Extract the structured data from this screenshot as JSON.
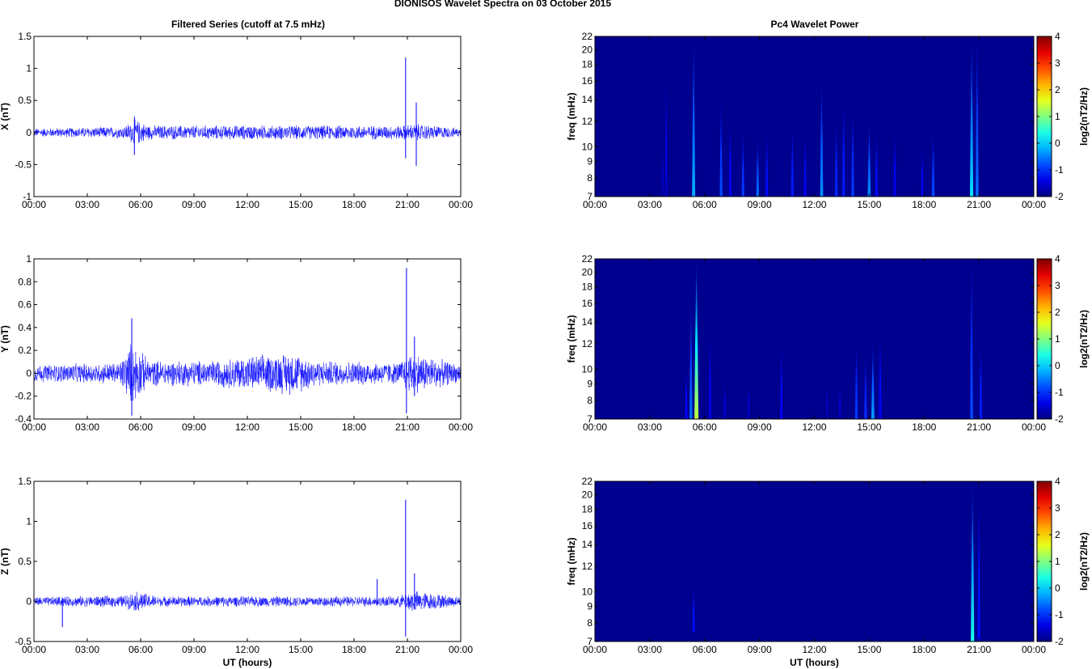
{
  "title": "DIONISOS Wavelet Spectra on 03 October   2015",
  "left_title": "Filtered Series (cutoff at 7.5 mHz)",
  "right_title": "Pc4 Wavelet Power",
  "colors": {
    "trace": "#0000ff",
    "background": "#00008f"
  },
  "chart_data": [
    {
      "id": "x-series",
      "type": "line",
      "series": [
        {
          "name": "",
          "component": "X"
        }
      ],
      "ylabel": "X (nT)",
      "xlabel": "",
      "ylim": [
        -1,
        1.5
      ],
      "yticks": [
        "-1",
        "-0.5",
        "0",
        "0.5",
        "1",
        "1.5"
      ],
      "yticks_values": [
        -1,
        -0.5,
        0,
        0.5,
        1,
        1.5
      ],
      "xticks": [
        "00:00",
        "03:00",
        "06:00",
        "09:00",
        "12:00",
        "15:00",
        "18:00",
        "21:00",
        "00:00"
      ],
      "noise_envelope": [
        {
          "t": 0,
          "amp": 0.07
        },
        {
          "t": 5,
          "amp": 0.1
        },
        {
          "t": 5.7,
          "amp": 0.22
        },
        {
          "t": 6.5,
          "amp": 0.12
        },
        {
          "t": 12,
          "amp": 0.12
        },
        {
          "t": 18,
          "amp": 0.12
        },
        {
          "t": 20.7,
          "amp": 0.12
        },
        {
          "t": 21.5,
          "amp": 0.15
        },
        {
          "t": 24,
          "amp": 0.07
        }
      ],
      "spikes": [
        {
          "t": 5.65,
          "max": 0.25,
          "min": -0.35
        },
        {
          "t": 20.9,
          "max": 1.17,
          "min": -0.4
        },
        {
          "t": 21.5,
          "max": 0.47,
          "min": -0.52
        }
      ]
    },
    {
      "id": "y-series",
      "type": "line",
      "series": [
        {
          "name": "",
          "component": "Y"
        }
      ],
      "ylabel": "Y (nT)",
      "xlabel": "",
      "ylim": [
        -0.4,
        1
      ],
      "yticks": [
        "-0.4",
        "-0.2",
        "0",
        "0.2",
        "0.4",
        "0.6",
        "0.8",
        "1"
      ],
      "yticks_values": [
        -0.4,
        -0.2,
        0,
        0.2,
        0.4,
        0.6,
        0.8,
        1
      ],
      "xticks": [
        "00:00",
        "03:00",
        "06:00",
        "09:00",
        "12:00",
        "15:00",
        "18:00",
        "21:00",
        "00:00"
      ],
      "noise_envelope": [
        {
          "t": 0,
          "amp": 0.08
        },
        {
          "t": 4.8,
          "amp": 0.1
        },
        {
          "t": 5.5,
          "amp": 0.3
        },
        {
          "t": 6.5,
          "amp": 0.12
        },
        {
          "t": 10,
          "amp": 0.12
        },
        {
          "t": 12,
          "amp": 0.16
        },
        {
          "t": 14.5,
          "amp": 0.2
        },
        {
          "t": 16,
          "amp": 0.12
        },
        {
          "t": 20.5,
          "amp": 0.1
        },
        {
          "t": 21.2,
          "amp": 0.2
        },
        {
          "t": 24,
          "amp": 0.08
        }
      ],
      "spikes": [
        {
          "t": 5.5,
          "max": 0.48,
          "min": -0.37
        },
        {
          "t": 20.95,
          "max": 0.92,
          "min": -0.35
        },
        {
          "t": 21.4,
          "max": 0.32,
          "min": -0.2
        }
      ]
    },
    {
      "id": "z-series",
      "type": "line",
      "series": [
        {
          "name": "",
          "component": "Z"
        }
      ],
      "ylabel": "Z (nT)",
      "xlabel": "UT (hours)",
      "ylim": [
        -0.5,
        1.5
      ],
      "yticks": [
        "-0.5",
        "0",
        "0.5",
        "1",
        "1.5"
      ],
      "yticks_values": [
        -0.5,
        0,
        0.5,
        1,
        1.5
      ],
      "xticks": [
        "00:00",
        "03:00",
        "06:00",
        "09:00",
        "12:00",
        "15:00",
        "18:00",
        "21:00",
        "00:00"
      ],
      "noise_envelope": [
        {
          "t": 0,
          "amp": 0.06
        },
        {
          "t": 5,
          "amp": 0.08
        },
        {
          "t": 5.8,
          "amp": 0.14
        },
        {
          "t": 7,
          "amp": 0.07
        },
        {
          "t": 20.5,
          "amp": 0.07
        },
        {
          "t": 21.2,
          "amp": 0.15
        },
        {
          "t": 24,
          "amp": 0.06
        }
      ],
      "spikes": [
        {
          "t": 1.6,
          "max": 0.05,
          "min": -0.32
        },
        {
          "t": 20.9,
          "max": 1.27,
          "min": -0.44
        },
        {
          "t": 21.4,
          "max": 0.35,
          "min": -0.1
        },
        {
          "t": 19.3,
          "max": 0.28,
          "min": -0.05
        }
      ]
    },
    {
      "id": "x-wavelet",
      "type": "heatmap",
      "ylabel": "freq (mHz)",
      "xlabel": "",
      "ylim": [
        7,
        22
      ],
      "y_scale": "log",
      "yticks": [
        "7",
        "8",
        "9",
        "10",
        "12",
        "14",
        "16",
        "18",
        "20",
        "22"
      ],
      "yticks_values": [
        7,
        8,
        9,
        10,
        12,
        14,
        16,
        18,
        20,
        22
      ],
      "xticks": [
        "00:00",
        "03:00",
        "06:00",
        "09:00",
        "12:00",
        "15:00",
        "18:00",
        "21:00",
        "00:00"
      ],
      "colorbar": {
        "label": "log2(nT2/Hz)",
        "range": [
          -2,
          4
        ],
        "ticks": [
          "-2",
          "-1",
          "0",
          "1",
          "2",
          "3",
          "4"
        ],
        "ticks_values": [
          -2,
          -1,
          0,
          1,
          2,
          3,
          4
        ]
      },
      "features": [
        {
          "t": 5.4,
          "fmin": 7,
          "fmax": 22,
          "power": -0.2
        },
        {
          "t": 3.9,
          "fmin": 7,
          "fmax": 17,
          "power": -1.6
        },
        {
          "t": 3.7,
          "fmin": 7,
          "fmax": 10,
          "power": -1.8
        },
        {
          "t": 6.9,
          "fmin": 7,
          "fmax": 14,
          "power": -0.8
        },
        {
          "t": 7.4,
          "fmin": 7,
          "fmax": 12,
          "power": -1.3
        },
        {
          "t": 8.1,
          "fmin": 7,
          "fmax": 11,
          "power": -0.9
        },
        {
          "t": 8.9,
          "fmin": 7,
          "fmax": 10.5,
          "power": -0.6
        },
        {
          "t": 9.4,
          "fmin": 7,
          "fmax": 11,
          "power": -1.2
        },
        {
          "t": 10.8,
          "fmin": 7,
          "fmax": 11.5,
          "power": -1.1
        },
        {
          "t": 11.5,
          "fmin": 7,
          "fmax": 11,
          "power": -1.3
        },
        {
          "t": 12.4,
          "fmin": 7,
          "fmax": 16,
          "power": -0.4
        },
        {
          "t": 13.2,
          "fmin": 7,
          "fmax": 12,
          "power": -1.0
        },
        {
          "t": 13.6,
          "fmin": 7,
          "fmax": 14,
          "power": -1.1
        },
        {
          "t": 14.1,
          "fmin": 7,
          "fmax": 13,
          "power": -0.9
        },
        {
          "t": 15.0,
          "fmin": 7,
          "fmax": 12,
          "power": -0.4
        },
        {
          "t": 15.4,
          "fmin": 7,
          "fmax": 11,
          "power": -1.2
        },
        {
          "t": 16.4,
          "fmin": 7,
          "fmax": 11,
          "power": -1.4
        },
        {
          "t": 18.5,
          "fmin": 7,
          "fmax": 11,
          "power": -0.8
        },
        {
          "t": 17.9,
          "fmin": 7,
          "fmax": 10,
          "power": -1.4
        },
        {
          "t": 20.6,
          "fmin": 7,
          "fmax": 22,
          "power": 0.1
        },
        {
          "t": 20.9,
          "fmin": 7,
          "fmax": 22,
          "power": -0.6
        }
      ]
    },
    {
      "id": "y-wavelet",
      "type": "heatmap",
      "ylabel": "freq (mHz)",
      "xlabel": "",
      "ylim": [
        7,
        22
      ],
      "y_scale": "log",
      "yticks": [
        "7",
        "8",
        "9",
        "10",
        "12",
        "14",
        "16",
        "18",
        "20",
        "22"
      ],
      "yticks_values": [
        7,
        8,
        9,
        10,
        12,
        14,
        16,
        18,
        20,
        22
      ],
      "xticks": [
        "00:00",
        "03:00",
        "06:00",
        "09:00",
        "12:00",
        "15:00",
        "18:00",
        "21:00",
        "00:00"
      ],
      "colorbar": {
        "label": "log2(nT2/Hz)",
        "range": [
          -2,
          4
        ],
        "ticks": [
          "-2",
          "-1",
          "0",
          "1",
          "2",
          "3",
          "4"
        ],
        "ticks_values": [
          -2,
          -1,
          0,
          1,
          2,
          3,
          4
        ]
      },
      "features": [
        {
          "t": 5.55,
          "fmin": 7,
          "fmax": 22,
          "power": 1.4
        },
        {
          "t": 5.25,
          "fmin": 7,
          "fmax": 16,
          "power": -0.6
        },
        {
          "t": 5.0,
          "fmin": 7,
          "fmax": 10,
          "power": -1.3
        },
        {
          "t": 6.3,
          "fmin": 7,
          "fmax": 13,
          "power": -1.4
        },
        {
          "t": 7.1,
          "fmin": 7,
          "fmax": 9,
          "power": -1.6
        },
        {
          "t": 8.4,
          "fmin": 7,
          "fmax": 9,
          "power": -1.7
        },
        {
          "t": 10.2,
          "fmin": 7,
          "fmax": 12,
          "power": -1.3
        },
        {
          "t": 12.7,
          "fmin": 7,
          "fmax": 9,
          "power": -1.8
        },
        {
          "t": 13.4,
          "fmin": 7,
          "fmax": 9,
          "power": -1.7
        },
        {
          "t": 14.3,
          "fmin": 7,
          "fmax": 12,
          "power": -0.9
        },
        {
          "t": 14.8,
          "fmin": 7,
          "fmax": 11,
          "power": -1.0
        },
        {
          "t": 15.2,
          "fmin": 7,
          "fmax": 12,
          "power": -0.3
        },
        {
          "t": 15.6,
          "fmin": 7,
          "fmax": 13,
          "power": -1.3
        },
        {
          "t": 20.6,
          "fmin": 7,
          "fmax": 22,
          "power": -0.8
        },
        {
          "t": 21.1,
          "fmin": 7,
          "fmax": 12,
          "power": -1.1
        }
      ]
    },
    {
      "id": "z-wavelet",
      "type": "heatmap",
      "ylabel": "freq (mHz)",
      "xlabel": "UT (hours)",
      "ylim": [
        7,
        22
      ],
      "y_scale": "log",
      "yticks": [
        "7",
        "8",
        "9",
        "10",
        "12",
        "14",
        "16",
        "18",
        "20",
        "22"
      ],
      "yticks_values": [
        7,
        8,
        9,
        10,
        12,
        14,
        16,
        18,
        20,
        22
      ],
      "xticks": [
        "00:00",
        "03:00",
        "06:00",
        "09:00",
        "12:00",
        "15:00",
        "18:00",
        "21:00",
        "00:00"
      ],
      "colorbar": {
        "label": "log2(nT2/Hz)",
        "range": [
          -2,
          4
        ],
        "ticks": [
          "-2",
          "-1",
          "0",
          "1",
          "2",
          "3",
          "4"
        ],
        "ticks_values": [
          -2,
          -1,
          0,
          1,
          2,
          3,
          4
        ]
      },
      "features": [
        {
          "t": 5.4,
          "fmin": 7.5,
          "fmax": 10.5,
          "power": -1.2
        },
        {
          "t": 20.65,
          "fmin": 7,
          "fmax": 22,
          "power": 0.4
        },
        {
          "t": 21.0,
          "fmin": 7,
          "fmax": 20,
          "power": -1.2
        }
      ]
    }
  ]
}
